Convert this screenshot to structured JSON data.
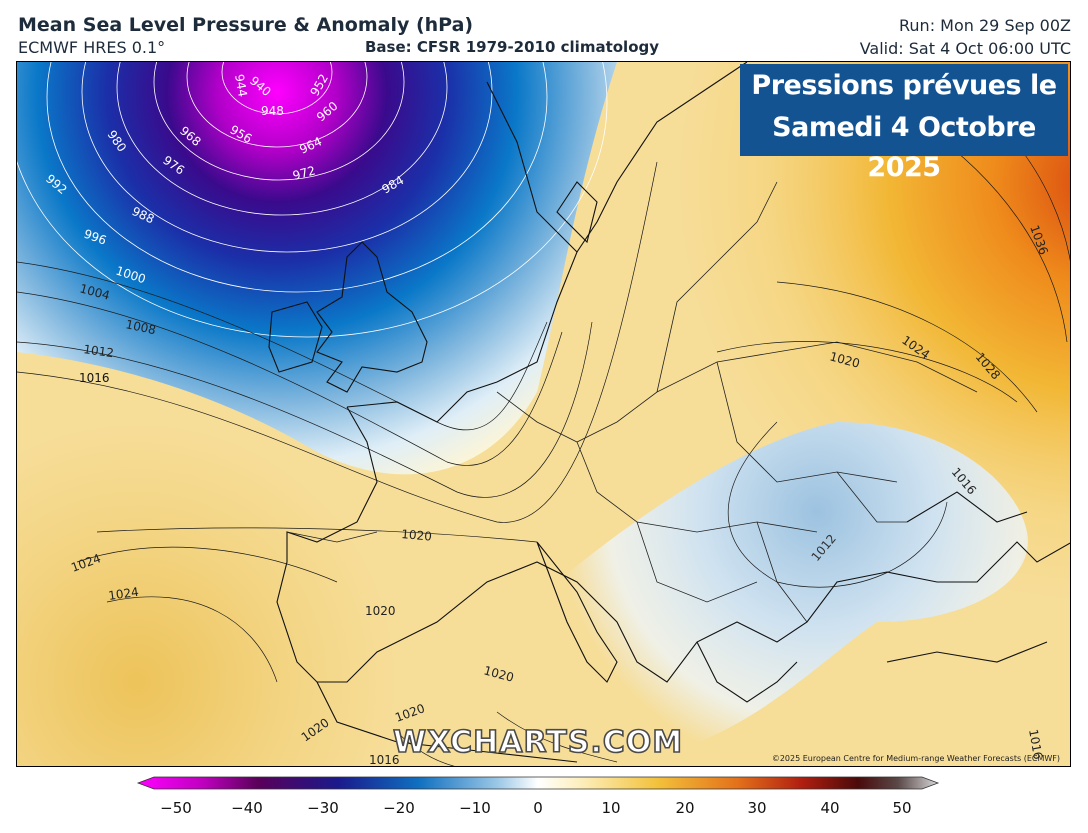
{
  "header": {
    "title": "Mean Sea Level Pressure & Anomaly (hPa)",
    "model": "ECMWF HRES 0.1°",
    "base": "Base: CFSR 1979-2010 climatology",
    "run": "Run: Mon 29 Sep 00Z",
    "valid": "Valid: Sat 4 Oct 06:00 UTC"
  },
  "overlay": {
    "line1": "Pressions prévues le",
    "line2": "Samedi 4 Octobre 2025",
    "color": "#145392"
  },
  "watermark": "WXCHARTS.COM",
  "copyright": "©2025 European Centre for Medium-range Weather Forecasts (ECMWF)",
  "colorbar": {
    "ticks": [
      "−50",
      "−40",
      "−30",
      "−20",
      "−10",
      "0",
      "10",
      "20",
      "30",
      "40",
      "50"
    ],
    "colors": [
      "#ff00ff",
      "#5a005a",
      "#1a1a8c",
      "#0f6fc0",
      "#dce9f3",
      "#fff8d8",
      "#f3c13a",
      "#e3701a",
      "#8c1010",
      "#2a0a0a",
      "#cccccc"
    ]
  },
  "contours": {
    "labels": [
      "944",
      "940",
      "948",
      "952",
      "956",
      "960",
      "964",
      "968",
      "972",
      "976",
      "980",
      "984",
      "988",
      "992",
      "996",
      "1000",
      "1004",
      "1008",
      "1012",
      "1016",
      "1020",
      "1024",
      "1028",
      "1036"
    ]
  },
  "map_labels": [
    {
      "text": "944"
    },
    {
      "text": "940"
    },
    {
      "text": "948"
    },
    {
      "text": "952"
    },
    {
      "text": "956"
    },
    {
      "text": "960"
    },
    {
      "text": "964"
    },
    {
      "text": "968"
    },
    {
      "text": "972"
    },
    {
      "text": "976"
    },
    {
      "text": "980"
    },
    {
      "text": "984"
    },
    {
      "text": "988"
    },
    {
      "text": "992"
    },
    {
      "text": "996"
    },
    {
      "text": "1000"
    },
    {
      "text": "1004"
    },
    {
      "text": "1008"
    },
    {
      "text": "1012"
    },
    {
      "text": "1016"
    },
    {
      "text": "1020"
    },
    {
      "text": "1024"
    },
    {
      "text": "1028"
    },
    {
      "text": "1036"
    },
    {
      "text": "1012"
    },
    {
      "text": "1020"
    },
    {
      "text": "1020"
    },
    {
      "text": "1020"
    },
    {
      "text": "1020"
    },
    {
      "text": "1020"
    },
    {
      "text": "1024"
    },
    {
      "text": "1024"
    },
    {
      "text": "1016"
    },
    {
      "text": "1016"
    },
    {
      "text": "1016"
    }
  ]
}
